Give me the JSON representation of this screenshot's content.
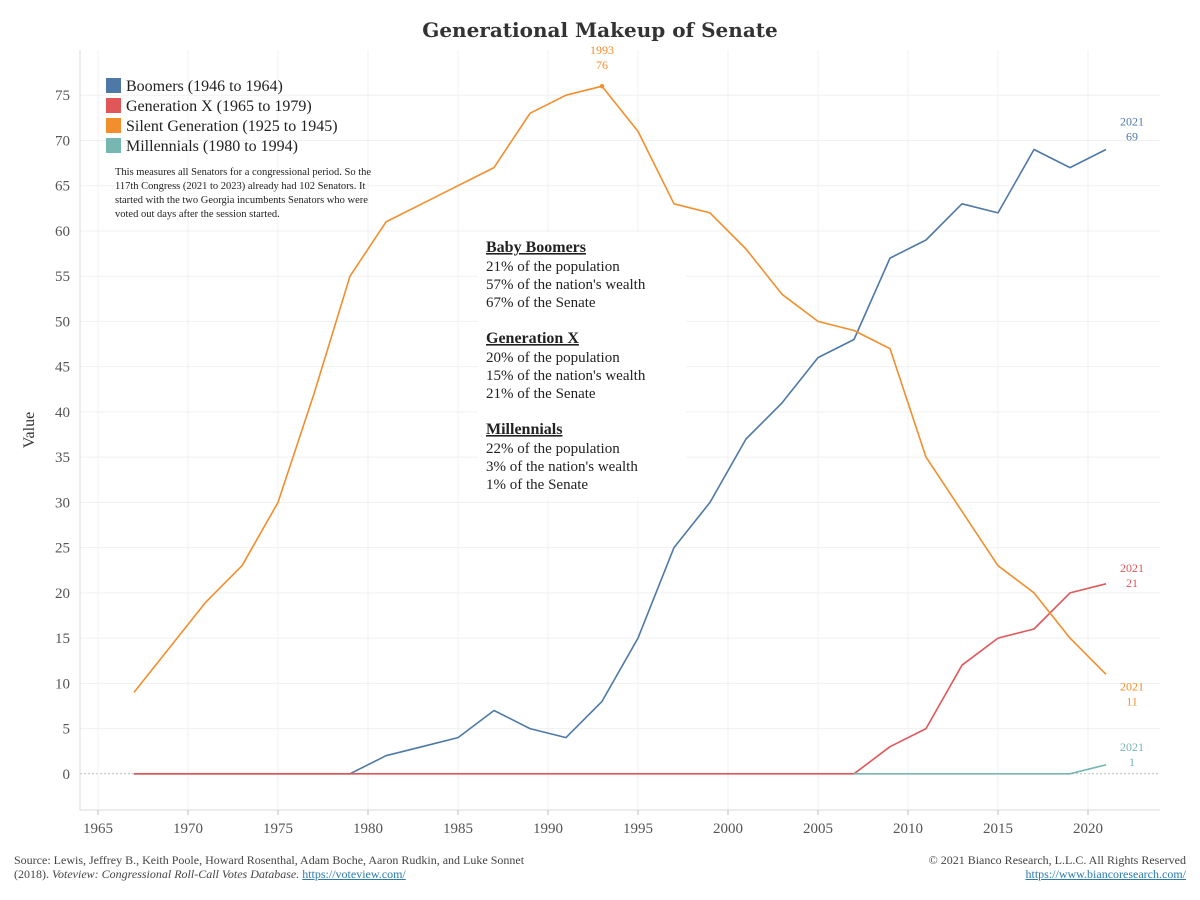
{
  "chart_data": {
    "type": "line",
    "title": "Generational Makeup of Senate",
    "xlabel": "",
    "ylabel": "Value",
    "xlim": [
      1964,
      2024
    ],
    "ylim": [
      -4,
      80
    ],
    "x_ticks": [
      1965,
      1970,
      1975,
      1980,
      1985,
      1990,
      1995,
      2000,
      2005,
      2010,
      2015,
      2020
    ],
    "y_ticks": [
      0,
      5,
      10,
      15,
      20,
      25,
      30,
      35,
      40,
      45,
      50,
      55,
      60,
      65,
      70,
      75
    ],
    "grid": true,
    "legend_position": "top-left",
    "x": [
      1967,
      1969,
      1971,
      1973,
      1975,
      1977,
      1979,
      1981,
      1983,
      1985,
      1987,
      1989,
      1991,
      1993,
      1995,
      1997,
      1999,
      2001,
      2003,
      2005,
      2007,
      2009,
      2011,
      2013,
      2015,
      2017,
      2019,
      2021
    ],
    "series": [
      {
        "name": "Boomers (1946 to 1964)",
        "color": "#4e79a7",
        "values": [
          0,
          0,
          0,
          0,
          0,
          0,
          0,
          2,
          3,
          4,
          7,
          5,
          4,
          8,
          15,
          25,
          30,
          37,
          41,
          46,
          48,
          57,
          59,
          63,
          62,
          69,
          67,
          69
        ]
      },
      {
        "name": "Generation X (1965 to 1979)",
        "color": "#e15759",
        "values": [
          0,
          0,
          0,
          0,
          0,
          0,
          0,
          0,
          0,
          0,
          0,
          0,
          0,
          0,
          0,
          0,
          0,
          0,
          0,
          0,
          0,
          3,
          5,
          12,
          15,
          16,
          20,
          21
        ]
      },
      {
        "name": "Silent Generation (1925 to 1945)",
        "color": "#f28e2b",
        "values": [
          9,
          14,
          19,
          23,
          30,
          42,
          55,
          61,
          63,
          65,
          67,
          73,
          75,
          76,
          71,
          63,
          62,
          58,
          53,
          50,
          49,
          47,
          35,
          29,
          23,
          20,
          15,
          11
        ]
      },
      {
        "name": "Millennials (1980 to 1994)",
        "color": "#76b7b2",
        "values": [
          null,
          null,
          null,
          null,
          null,
          null,
          null,
          null,
          null,
          null,
          null,
          null,
          null,
          null,
          null,
          null,
          null,
          null,
          null,
          null,
          0,
          0,
          0,
          0,
          0,
          0,
          0,
          1
        ]
      }
    ],
    "point_labels": [
      {
        "series": 2,
        "year": "1993",
        "value": "76"
      },
      {
        "series": 0,
        "year": "2021",
        "value": "69"
      },
      {
        "series": 1,
        "year": "2021",
        "value": "21"
      },
      {
        "series": 2,
        "year": "2021",
        "value": "11"
      },
      {
        "series": 3,
        "year": "2021",
        "value": "1"
      }
    ],
    "note": [
      "This measures all Senators for a congressional period.  So the",
      "117th Congress (2021 to 2023) already had 102 Senators. It",
      "started with the two Georgia incumbents Senators who were",
      "voted out days after the session started."
    ],
    "annotation": [
      {
        "heading": "Baby Boomers",
        "lines": [
          "21% of the population",
          "57% of the nation's wealth",
          "67% of the Senate"
        ]
      },
      {
        "heading": "Generation X",
        "lines": [
          "20% of the population",
          "15% of the nation's wealth",
          "21% of the Senate"
        ]
      },
      {
        "heading": "Millennials",
        "lines": [
          "22% of the population",
          "3% of the nation's wealth",
          "1% of the Senate"
        ]
      }
    ]
  },
  "footer": {
    "source_line1": "Source: Lewis, Jeffrey B., Keith Poole, Howard Rosenthal, Adam Boche, Aaron Rudkin, and Luke Sonnet",
    "source_year": "(2018).",
    "source_title": "Voteview: Congressional Roll-Call Votes Database.",
    "source_url": "https://voteview.com/",
    "copyright": "© 2021 Bianco Research, L.L.C. All Rights Reserved",
    "site_url": "https://www.biancoresearch.com/"
  }
}
